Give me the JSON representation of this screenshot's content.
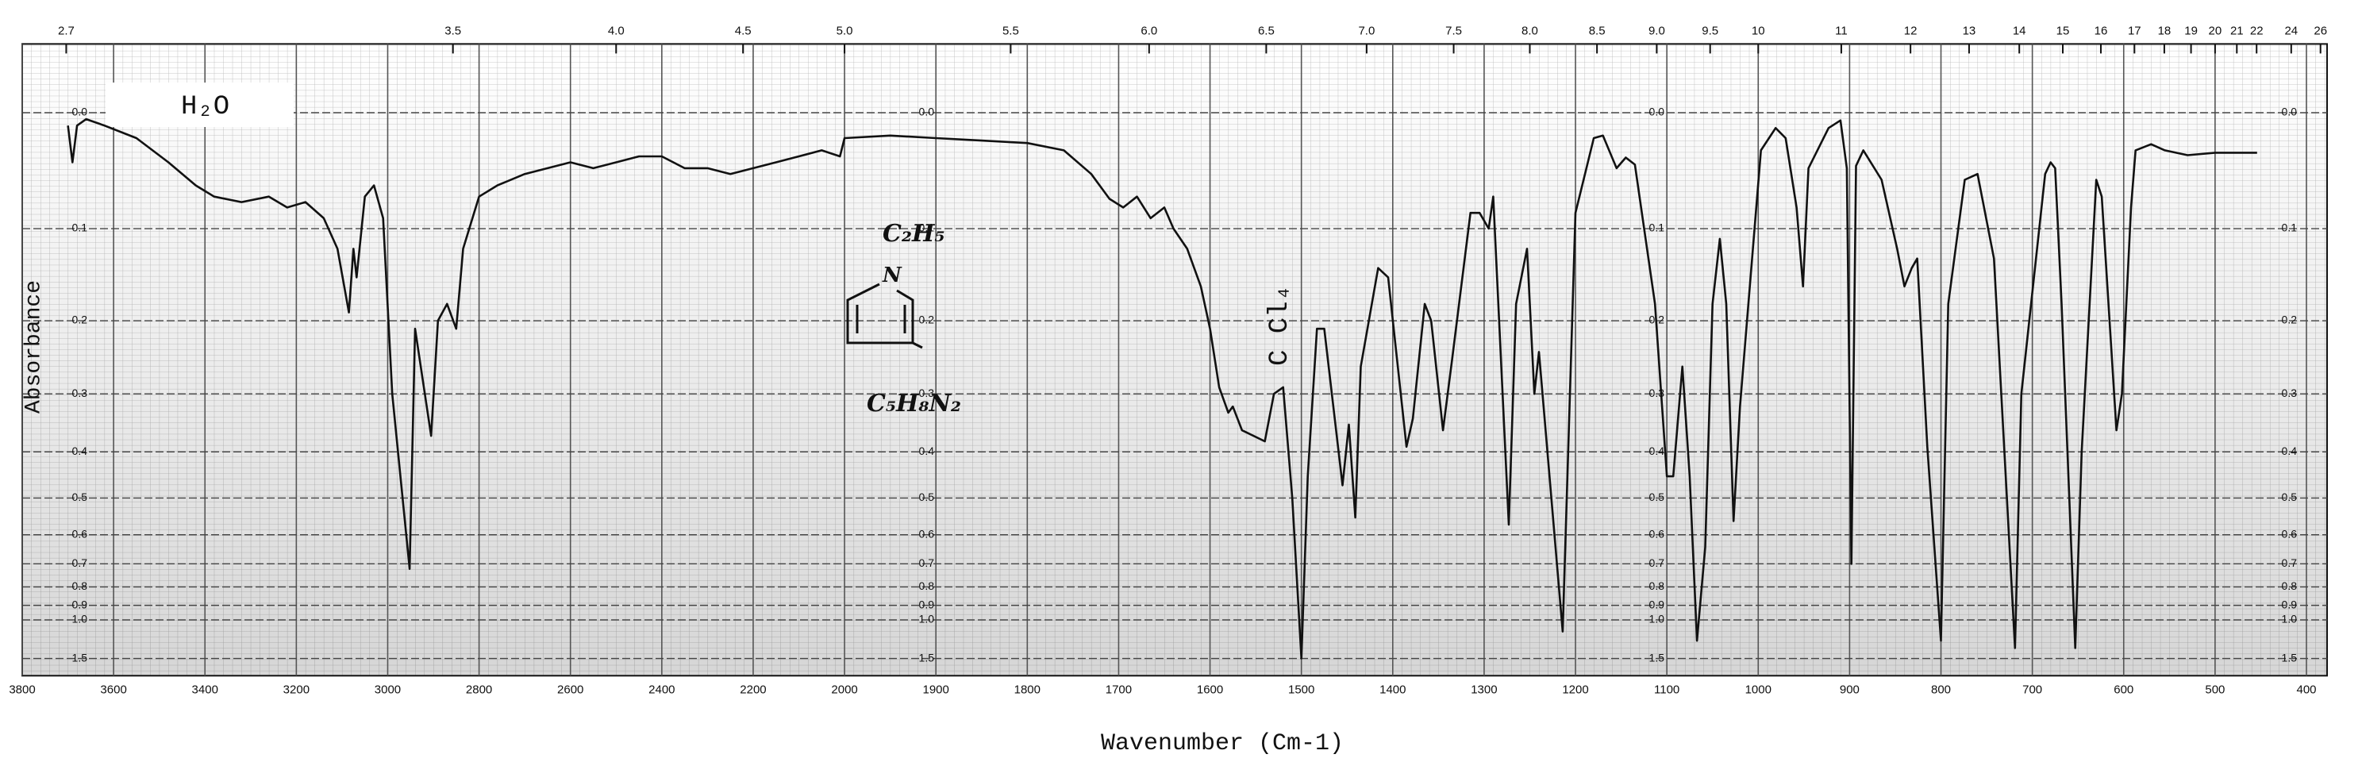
{
  "chart_data": {
    "type": "line",
    "xlabel": "Wavenumber (Cm-1)",
    "ylabel": "Absorbance",
    "xlim": [
      3800,
      400
    ],
    "xscale": {
      "break": 2000,
      "factor": 2
    },
    "ylim": [
      -0.05,
      3
    ],
    "yscale": "transmittance",
    "grid": true,
    "color": "#111111",
    "xticks": [
      3800,
      3600,
      3400,
      3200,
      3000,
      2800,
      2600,
      2400,
      2200,
      2000,
      1900,
      1800,
      1700,
      1600,
      1500,
      1400,
      1300,
      1200,
      1100,
      1000,
      900,
      800,
      700,
      600,
      500,
      400
    ],
    "x2ticks": [
      2.7,
      3.5,
      {
        "value": 4,
        "label": "4.0"
      },
      4.5,
      {
        "value": 5,
        "label": "5.0"
      },
      5.5,
      {
        "value": 6,
        "label": "6.0"
      },
      6.5,
      {
        "value": 7,
        "label": "7.0"
      },
      7.5,
      {
        "value": 8,
        "label": "8.0"
      },
      8.5,
      {
        "value": 9,
        "label": "9.0"
      },
      9.5,
      10,
      11,
      12,
      13,
      14,
      15,
      16,
      17,
      18,
      19,
      20,
      21,
      22,
      24,
      26
    ],
    "yticks": [
      {
        "value": 0,
        "label": "0.0"
      },
      0.1,
      0.2,
      0.3,
      0.4,
      0.5,
      0.6,
      0.7,
      0.8,
      0.9,
      {
        "value": 1,
        "label": "1.0"
      },
      1.5
    ],
    "annotations": [
      "H₂O",
      "C Cl₄",
      "C₂H₅",
      "N",
      "C₅H₈N₂"
    ],
    "x": [
      3700,
      3690,
      3680,
      3660,
      3620,
      3550,
      3480,
      3420,
      3380,
      3320,
      3260,
      3220,
      3180,
      3140,
      3110,
      3085,
      3075,
      3068,
      3050,
      3030,
      3010,
      2990,
      2952,
      2940,
      2905,
      2890,
      2870,
      2850,
      2835,
      2800,
      2760,
      2700,
      2650,
      2600,
      2550,
      2500,
      2450,
      2400,
      2350,
      2300,
      2250,
      2200,
      2150,
      2100,
      2050,
      2010,
      2000,
      1950,
      1900,
      1850,
      1800,
      1760,
      1730,
      1710,
      1695,
      1680,
      1665,
      1650,
      1640,
      1625,
      1610,
      1600,
      1590,
      1580,
      1575,
      1565,
      1540,
      1530,
      1520,
      1510,
      1500,
      1493,
      1483,
      1475,
      1455,
      1448,
      1441,
      1435,
      1416,
      1405,
      1385,
      1378,
      1365,
      1358,
      1345,
      1335,
      1315,
      1305,
      1295,
      1290,
      1273,
      1265,
      1253,
      1245,
      1240,
      1214,
      1200,
      1180,
      1170,
      1155,
      1145,
      1135,
      1113,
      1100,
      1093,
      1083,
      1075,
      1067,
      1058,
      1050,
      1042,
      1035,
      1027,
      1020,
      997,
      981,
      970,
      958,
      951,
      945,
      923,
      910,
      903,
      898,
      893,
      885,
      865,
      848,
      840,
      832,
      826,
      815,
      800,
      792,
      774,
      760,
      742,
      719,
      712,
      686,
      680,
      675,
      668,
      653,
      646,
      630,
      624,
      608,
      602,
      592,
      587,
      570,
      555,
      530,
      500,
      454
    ],
    "values": [
      0.01,
      0.04,
      0.01,
      0.005,
      0.01,
      0.02,
      0.04,
      0.06,
      0.07,
      0.075,
      0.07,
      0.08,
      0.075,
      0.09,
      0.12,
      0.19,
      0.12,
      0.15,
      0.07,
      0.06,
      0.09,
      0.3,
      0.72,
      0.21,
      0.37,
      0.2,
      0.18,
      0.21,
      0.12,
      0.07,
      0.06,
      0.05,
      0.045,
      0.04,
      0.045,
      0.04,
      0.035,
      0.035,
      0.045,
      0.045,
      0.05,
      0.045,
      0.04,
      0.035,
      0.03,
      0.035,
      0.02,
      0.018,
      0.02,
      0.022,
      0.024,
      0.03,
      0.05,
      0.072,
      0.08,
      0.07,
      0.09,
      0.08,
      0.1,
      0.12,
      0.16,
      0.21,
      0.29,
      0.33,
      0.32,
      0.36,
      0.38,
      0.3,
      0.29,
      0.5,
      1.5,
      0.45,
      0.21,
      0.21,
      0.47,
      0.35,
      0.55,
      0.26,
      0.14,
      0.15,
      0.39,
      0.34,
      0.18,
      0.2,
      0.36,
      0.25,
      0.085,
      0.085,
      0.1,
      0.07,
      0.57,
      0.18,
      0.12,
      0.3,
      0.24,
      1.1,
      0.085,
      0.02,
      0.018,
      0.045,
      0.036,
      0.042,
      0.18,
      0.45,
      0.45,
      0.26,
      0.45,
      1.2,
      0.64,
      0.18,
      0.11,
      0.18,
      0.56,
      0.32,
      0.03,
      0.012,
      0.02,
      0.08,
      0.16,
      0.045,
      0.012,
      0.006,
      0.045,
      0.7,
      0.043,
      0.03,
      0.055,
      0.12,
      0.16,
      0.14,
      0.13,
      0.39,
      1.2,
      0.18,
      0.055,
      0.05,
      0.13,
      1.3,
      0.3,
      0.05,
      0.04,
      0.045,
      0.18,
      1.3,
      0.4,
      0.055,
      0.07,
      0.36,
      0.3,
      0.08,
      0.03,
      0.025,
      0.03,
      0.034,
      0.032,
      0.032
    ]
  }
}
